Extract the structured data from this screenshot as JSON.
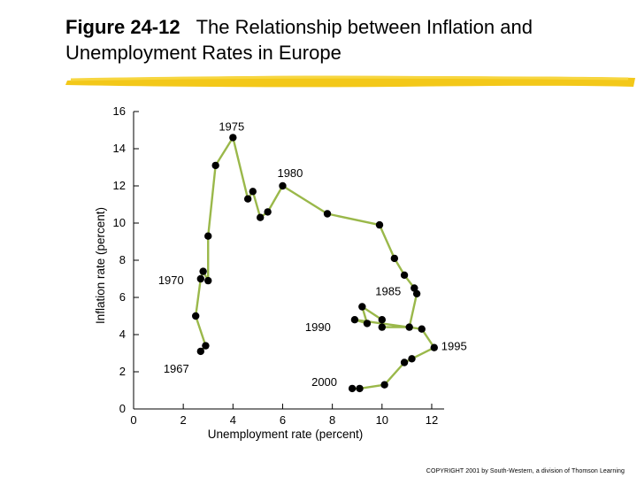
{
  "figure": {
    "number": "Figure 24-12",
    "title": "The Relationship between Inflation and Unemployment Rates in Europe"
  },
  "copyright": "COPYRIGHT 2001 by South-Western, a division of Thomson Learning",
  "colors": {
    "line": "#9ab84a",
    "marker": "#000000",
    "brush": "#f2c200",
    "axis": "#000000"
  },
  "chart_data": {
    "type": "line",
    "title": "",
    "xlabel": "Unemployment rate (percent)",
    "ylabel": "Inflation rate (percent)",
    "xlim": [
      0,
      12.5
    ],
    "ylim": [
      0,
      16
    ],
    "xticks": [
      0,
      2,
      4,
      6,
      8,
      10,
      12
    ],
    "yticks": [
      0,
      2,
      4,
      6,
      8,
      10,
      12,
      14,
      16
    ],
    "grid": false,
    "series": [
      {
        "points": [
          {
            "x": 2.7,
            "y": 3.1
          },
          {
            "x": 2.9,
            "y": 3.4
          },
          {
            "x": 2.5,
            "y": 5.0
          },
          {
            "x": 2.7,
            "y": 7.0
          },
          {
            "x": 2.8,
            "y": 7.4
          },
          {
            "x": 3.0,
            "y": 6.9
          },
          {
            "x": 3.0,
            "y": 9.3
          },
          {
            "x": 3.3,
            "y": 13.1
          },
          {
            "x": 4.0,
            "y": 14.6
          },
          {
            "x": 4.6,
            "y": 11.3
          },
          {
            "x": 4.8,
            "y": 11.7
          },
          {
            "x": 5.1,
            "y": 10.3
          },
          {
            "x": 5.4,
            "y": 10.6
          },
          {
            "x": 6.0,
            "y": 12.0
          },
          {
            "x": 7.8,
            "y": 10.5
          },
          {
            "x": 9.9,
            "y": 9.9
          },
          {
            "x": 10.5,
            "y": 8.1
          },
          {
            "x": 10.9,
            "y": 7.2
          },
          {
            "x": 11.3,
            "y": 6.5
          },
          {
            "x": 11.4,
            "y": 6.2
          },
          {
            "x": 11.1,
            "y": 4.4
          },
          {
            "x": 10.0,
            "y": 4.4
          },
          {
            "x": 10.0,
            "y": 4.8
          },
          {
            "x": 9.2,
            "y": 5.5
          },
          {
            "x": 9.4,
            "y": 4.6
          },
          {
            "x": 8.9,
            "y": 4.8
          },
          {
            "x": 11.6,
            "y": 4.3
          },
          {
            "x": 12.1,
            "y": 3.3
          },
          {
            "x": 11.2,
            "y": 2.7
          },
          {
            "x": 10.9,
            "y": 2.5
          },
          {
            "x": 10.1,
            "y": 1.3
          },
          {
            "x": 9.1,
            "y": 1.1
          },
          {
            "x": 8.8,
            "y": 1.1
          }
        ]
      }
    ],
    "annotations": [
      {
        "text": "1975",
        "x": 4.0,
        "y": 14.6
      },
      {
        "text": "1980",
        "x": 6.0,
        "y": 12.0
      },
      {
        "text": "1970",
        "x": 2.7,
        "y": 7.0
      },
      {
        "text": "1985",
        "x": 11.3,
        "y": 6.5
      },
      {
        "text": "1990",
        "x": 8.9,
        "y": 4.8
      },
      {
        "text": "1967",
        "x": 2.7,
        "y": 3.1
      },
      {
        "text": "1995",
        "x": 12.1,
        "y": 3.3
      },
      {
        "text": "2000",
        "x": 8.8,
        "y": 1.1
      }
    ]
  }
}
